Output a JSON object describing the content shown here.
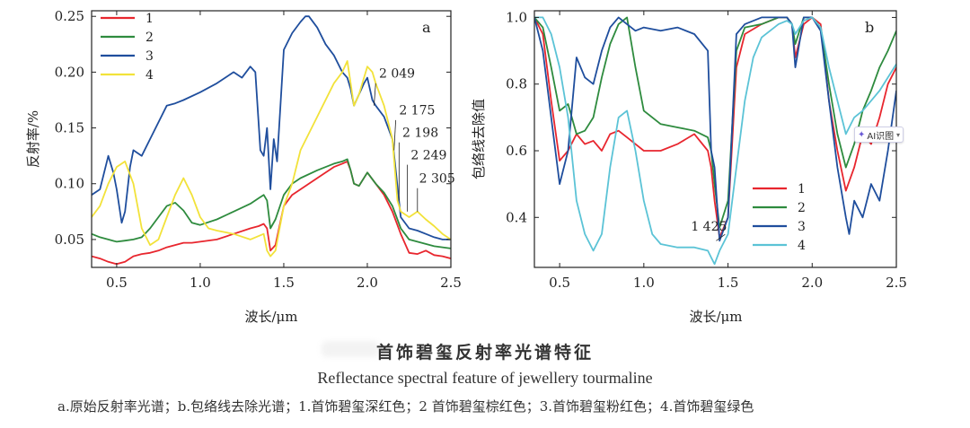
{
  "chart_data": [
    {
      "panel": "a",
      "type": "line",
      "xlabel": "波长/μm",
      "ylabel": "反射率/%",
      "xlim": [
        0.35,
        2.5
      ],
      "ylim": [
        0.025,
        0.255
      ],
      "xticks": [
        {
          "v": 0.5,
          "label": "0.5"
        },
        {
          "v": 1.0,
          "label": "1.0"
        },
        {
          "v": 1.5,
          "label": "1.5"
        },
        {
          "v": 2.0,
          "label": "2.0"
        },
        {
          "v": 2.5,
          "label": "2.5"
        }
      ],
      "yticks": [
        {
          "v": 0.05,
          "label": "0.05"
        },
        {
          "v": 0.1,
          "label": "0.10"
        },
        {
          "v": 0.15,
          "label": "0.15"
        },
        {
          "v": 0.2,
          "label": "0.20"
        },
        {
          "v": 0.25,
          "label": "0.25"
        }
      ],
      "legend_position": "top-left",
      "series": [
        {
          "name": "1",
          "color": "#e8262e",
          "x": [
            0.35,
            0.4,
            0.45,
            0.5,
            0.55,
            0.6,
            0.65,
            0.7,
            0.75,
            0.8,
            0.85,
            0.9,
            0.95,
            1.0,
            1.1,
            1.2,
            1.3,
            1.35,
            1.38,
            1.4,
            1.42,
            1.45,
            1.5,
            1.55,
            1.6,
            1.7,
            1.8,
            1.85,
            1.88,
            1.9,
            1.92,
            1.95,
            2.0,
            2.05,
            2.1,
            2.15,
            2.2,
            2.25,
            2.3,
            2.35,
            2.4,
            2.45,
            2.5
          ],
          "y": [
            0.035,
            0.033,
            0.03,
            0.028,
            0.03,
            0.035,
            0.037,
            0.038,
            0.04,
            0.043,
            0.045,
            0.047,
            0.047,
            0.048,
            0.05,
            0.055,
            0.06,
            0.062,
            0.064,
            0.06,
            0.04,
            0.045,
            0.08,
            0.09,
            0.095,
            0.105,
            0.115,
            0.118,
            0.12,
            0.112,
            0.1,
            0.098,
            0.11,
            0.1,
            0.09,
            0.075,
            0.055,
            0.038,
            0.037,
            0.04,
            0.036,
            0.035,
            0.033
          ]
        },
        {
          "name": "2",
          "color": "#2e8b3e",
          "x": [
            0.35,
            0.4,
            0.45,
            0.5,
            0.55,
            0.6,
            0.65,
            0.7,
            0.75,
            0.8,
            0.85,
            0.9,
            0.95,
            1.0,
            1.1,
            1.2,
            1.3,
            1.35,
            1.38,
            1.4,
            1.42,
            1.45,
            1.5,
            1.55,
            1.6,
            1.7,
            1.8,
            1.85,
            1.88,
            1.9,
            1.92,
            1.95,
            2.0,
            2.05,
            2.1,
            2.15,
            2.2,
            2.25,
            2.3,
            2.35,
            2.4,
            2.45,
            2.5
          ],
          "y": [
            0.055,
            0.052,
            0.05,
            0.048,
            0.049,
            0.05,
            0.052,
            0.06,
            0.07,
            0.08,
            0.083,
            0.076,
            0.065,
            0.063,
            0.068,
            0.075,
            0.082,
            0.087,
            0.09,
            0.085,
            0.06,
            0.068,
            0.09,
            0.1,
            0.105,
            0.112,
            0.118,
            0.12,
            0.122,
            0.112,
            0.1,
            0.098,
            0.11,
            0.1,
            0.092,
            0.08,
            0.06,
            0.05,
            0.048,
            0.046,
            0.044,
            0.043,
            0.042
          ]
        },
        {
          "name": "3",
          "color": "#1f4e9d",
          "x": [
            0.35,
            0.4,
            0.45,
            0.48,
            0.5,
            0.53,
            0.55,
            0.58,
            0.6,
            0.65,
            0.7,
            0.8,
            0.85,
            0.9,
            1.0,
            1.1,
            1.2,
            1.25,
            1.3,
            1.33,
            1.36,
            1.38,
            1.4,
            1.42,
            1.44,
            1.46,
            1.5,
            1.55,
            1.6,
            1.63,
            1.65,
            1.7,
            1.75,
            1.8,
            1.85,
            1.88,
            1.9,
            1.92,
            1.95,
            1.98,
            2.0,
            2.03,
            2.05,
            2.1,
            2.15,
            2.2,
            2.25,
            2.3,
            2.35,
            2.4,
            2.45,
            2.5
          ],
          "y": [
            0.09,
            0.095,
            0.125,
            0.11,
            0.095,
            0.065,
            0.075,
            0.115,
            0.13,
            0.125,
            0.14,
            0.17,
            0.172,
            0.175,
            0.182,
            0.19,
            0.2,
            0.195,
            0.205,
            0.2,
            0.13,
            0.125,
            0.15,
            0.095,
            0.14,
            0.12,
            0.22,
            0.235,
            0.245,
            0.25,
            0.25,
            0.24,
            0.225,
            0.215,
            0.2,
            0.195,
            0.185,
            0.17,
            0.18,
            0.19,
            0.195,
            0.175,
            0.17,
            0.16,
            0.14,
            0.07,
            0.06,
            0.058,
            0.055,
            0.052,
            0.05,
            0.05
          ]
        },
        {
          "name": "4",
          "color": "#f2e23a",
          "x": [
            0.35,
            0.4,
            0.45,
            0.5,
            0.55,
            0.6,
            0.65,
            0.7,
            0.75,
            0.8,
            0.85,
            0.9,
            0.95,
            1.0,
            1.05,
            1.1,
            1.2,
            1.3,
            1.38,
            1.4,
            1.42,
            1.45,
            1.5,
            1.55,
            1.6,
            1.7,
            1.8,
            1.85,
            1.88,
            1.9,
            1.92,
            1.95,
            2.0,
            2.03,
            2.05,
            2.1,
            2.15,
            2.18,
            2.2,
            2.25,
            2.3,
            2.35,
            2.4,
            2.45,
            2.5
          ],
          "y": [
            0.07,
            0.08,
            0.1,
            0.115,
            0.12,
            0.1,
            0.06,
            0.045,
            0.05,
            0.07,
            0.09,
            0.105,
            0.09,
            0.07,
            0.06,
            0.058,
            0.055,
            0.05,
            0.055,
            0.04,
            0.035,
            0.04,
            0.08,
            0.1,
            0.13,
            0.16,
            0.19,
            0.2,
            0.21,
            0.19,
            0.17,
            0.18,
            0.205,
            0.2,
            0.19,
            0.17,
            0.14,
            0.085,
            0.075,
            0.07,
            0.075,
            0.068,
            0.062,
            0.055,
            0.05
          ]
        }
      ],
      "annotations": [
        {
          "text": "2 049",
          "x": 2.07,
          "y": 0.195
        },
        {
          "text": "2 175",
          "x": 2.19,
          "y": 0.162
        },
        {
          "text": "2 198",
          "x": 2.21,
          "y": 0.142
        },
        {
          "text": "2 249",
          "x": 2.26,
          "y": 0.122
        },
        {
          "text": "2 305",
          "x": 2.31,
          "y": 0.101
        }
      ]
    },
    {
      "panel": "b",
      "type": "line",
      "xlabel": "波长/μm",
      "ylabel": "包络线去除值",
      "xlim": [
        0.35,
        2.5
      ],
      "ylim": [
        0.25,
        1.02
      ],
      "xticks": [
        {
          "v": 0.5,
          "label": "0.5"
        },
        {
          "v": 1.0,
          "label": "1.0"
        },
        {
          "v": 1.5,
          "label": "1.5"
        },
        {
          "v": 2.0,
          "label": "2.0"
        },
        {
          "v": 2.5,
          "label": "2.5"
        }
      ],
      "yticks": [
        {
          "v": 0.4,
          "label": "0.4"
        },
        {
          "v": 0.6,
          "label": "0.6"
        },
        {
          "v": 0.8,
          "label": "0.8"
        },
        {
          "v": 1.0,
          "label": "1.0"
        }
      ],
      "legend_position": "bottom-center",
      "series": [
        {
          "name": "1",
          "color": "#e8262e",
          "x": [
            0.35,
            0.4,
            0.45,
            0.5,
            0.55,
            0.6,
            0.65,
            0.7,
            0.75,
            0.8,
            0.85,
            0.9,
            0.95,
            1.0,
            1.1,
            1.2,
            1.3,
            1.38,
            1.4,
            1.42,
            1.45,
            1.5,
            1.55,
            1.6,
            1.7,
            1.8,
            1.85,
            1.88,
            1.9,
            1.95,
            2.0,
            2.05,
            2.1,
            2.15,
            2.2,
            2.25,
            2.3,
            2.35,
            2.4,
            2.45,
            2.5
          ],
          "y": [
            1.0,
            0.95,
            0.75,
            0.57,
            0.6,
            0.65,
            0.62,
            0.63,
            0.6,
            0.65,
            0.66,
            0.64,
            0.62,
            0.6,
            0.6,
            0.62,
            0.65,
            0.6,
            0.55,
            0.45,
            0.34,
            0.4,
            0.85,
            0.95,
            0.98,
            1.0,
            1.0,
            0.98,
            0.88,
            0.98,
            1.0,
            0.98,
            0.75,
            0.6,
            0.48,
            0.55,
            0.65,
            0.62,
            0.7,
            0.8,
            0.85
          ]
        },
        {
          "name": "2",
          "color": "#2e8b3e",
          "x": [
            0.35,
            0.4,
            0.45,
            0.5,
            0.55,
            0.6,
            0.65,
            0.7,
            0.75,
            0.8,
            0.85,
            0.9,
            0.95,
            1.0,
            1.1,
            1.2,
            1.3,
            1.38,
            1.4,
            1.42,
            1.45,
            1.5,
            1.55,
            1.6,
            1.7,
            1.8,
            1.85,
            1.88,
            1.9,
            1.95,
            2.0,
            2.05,
            2.1,
            2.15,
            2.2,
            2.25,
            2.3,
            2.35,
            2.4,
            2.45,
            2.5
          ],
          "y": [
            1.0,
            0.97,
            0.85,
            0.72,
            0.74,
            0.65,
            0.66,
            0.7,
            0.82,
            0.92,
            0.98,
            1.0,
            0.85,
            0.72,
            0.68,
            0.67,
            0.66,
            0.64,
            0.6,
            0.5,
            0.37,
            0.45,
            0.9,
            0.97,
            0.98,
            1.0,
            1.0,
            0.98,
            0.92,
            1.0,
            1.0,
            0.97,
            0.8,
            0.65,
            0.55,
            0.62,
            0.72,
            0.78,
            0.85,
            0.9,
            0.96
          ]
        },
        {
          "name": "3",
          "color": "#1f4e9d",
          "x": [
            0.35,
            0.4,
            0.45,
            0.5,
            0.55,
            0.6,
            0.65,
            0.7,
            0.75,
            0.8,
            0.85,
            0.9,
            0.95,
            1.0,
            1.1,
            1.2,
            1.3,
            1.38,
            1.4,
            1.42,
            1.45,
            1.5,
            1.55,
            1.6,
            1.7,
            1.8,
            1.85,
            1.88,
            1.9,
            1.95,
            2.0,
            2.05,
            2.1,
            2.15,
            2.2,
            2.22,
            2.25,
            2.3,
            2.35,
            2.4,
            2.45,
            2.5
          ],
          "y": [
            1.0,
            0.9,
            0.7,
            0.5,
            0.6,
            0.88,
            0.82,
            0.8,
            0.9,
            0.97,
            1.0,
            0.98,
            0.96,
            0.97,
            0.96,
            0.97,
            0.95,
            0.9,
            0.6,
            0.55,
            0.33,
            0.4,
            0.95,
            0.98,
            1.0,
            1.0,
            1.0,
            0.98,
            0.85,
            1.0,
            1.0,
            0.96,
            0.75,
            0.55,
            0.4,
            0.35,
            0.45,
            0.4,
            0.5,
            0.45,
            0.6,
            0.78
          ]
        },
        {
          "name": "4",
          "color": "#5bc3d6",
          "x": [
            0.35,
            0.4,
            0.45,
            0.5,
            0.55,
            0.6,
            0.65,
            0.7,
            0.75,
            0.8,
            0.85,
            0.9,
            0.95,
            1.0,
            1.05,
            1.1,
            1.2,
            1.3,
            1.38,
            1.4,
            1.42,
            1.45,
            1.5,
            1.55,
            1.6,
            1.65,
            1.7,
            1.8,
            1.85,
            1.88,
            1.9,
            1.95,
            2.0,
            2.05,
            2.1,
            2.15,
            2.2,
            2.25,
            2.3,
            2.35,
            2.4,
            2.45,
            2.5
          ],
          "y": [
            1.0,
            1.0,
            0.95,
            0.85,
            0.7,
            0.45,
            0.35,
            0.3,
            0.35,
            0.55,
            0.7,
            0.72,
            0.6,
            0.45,
            0.35,
            0.32,
            0.31,
            0.31,
            0.3,
            0.28,
            0.26,
            0.3,
            0.35,
            0.55,
            0.75,
            0.88,
            0.94,
            0.98,
            0.99,
            0.98,
            0.95,
            0.99,
            1.0,
            0.97,
            0.85,
            0.75,
            0.65,
            0.7,
            0.72,
            0.75,
            0.78,
            0.82,
            0.86
          ]
        }
      ],
      "annotations": [
        {
          "text": "1 425",
          "x": 1.28,
          "y": 0.36
        }
      ]
    }
  ],
  "caption": {
    "title_zh": "首饰碧玺反射率光谱特征",
    "title_en": "Reflectance spectral feature of jewellery tourmaline",
    "note": "a.原始反射率光谱；b.包络线去除光谱；1.首饰碧玺深红色；2 首饰碧玺棕红色；3.首饰碧玺粉红色；4.首饰碧玺绿色"
  },
  "overlay": {
    "ai_badge_label": "AI识图",
    "ai_badge_icon": "ai-sparkle-icon"
  }
}
